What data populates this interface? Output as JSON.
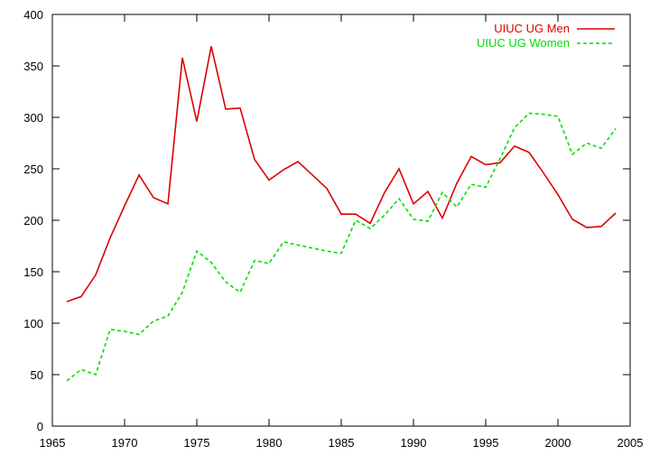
{
  "chart_data": {
    "type": "line",
    "title": "",
    "xlabel": "",
    "ylabel": "",
    "xlim": [
      1965,
      2005
    ],
    "ylim": [
      0,
      400
    ],
    "x_ticks": [
      1965,
      1970,
      1975,
      1980,
      1985,
      1990,
      1995,
      2000,
      2005
    ],
    "y_ticks": [
      0,
      50,
      100,
      150,
      200,
      250,
      300,
      350,
      400
    ],
    "grid": false,
    "legend_position": "top-right",
    "series": [
      {
        "name": "UIUC UG Men",
        "color": "#dd0000",
        "dash": "solid",
        "x": [
          1966,
          1967,
          1968,
          1969,
          1970,
          1971,
          1972,
          1973,
          1974,
          1975,
          1976,
          1977,
          1978,
          1979,
          1980,
          1981,
          1982,
          1983,
          1984,
          1985,
          1986,
          1987,
          1988,
          1989,
          1990,
          1991,
          1992,
          1993,
          1994,
          1995,
          1996,
          1997,
          1998,
          1999,
          2000,
          2001,
          2002,
          2003,
          2004
        ],
        "y": [
          121,
          126,
          147,
          183,
          214,
          244,
          222,
          216,
          358,
          296,
          369,
          308,
          309,
          259,
          239,
          249,
          257,
          244,
          231,
          206,
          206,
          197,
          227,
          250,
          216,
          228,
          202,
          236,
          262,
          254,
          256,
          272,
          266,
          246,
          225,
          201,
          193,
          194,
          207
        ]
      },
      {
        "name": "UIUC UG Women",
        "color": "#00dd00",
        "dash": "dashed",
        "x": [
          1966,
          1967,
          1968,
          1969,
          1970,
          1971,
          1972,
          1973,
          1974,
          1975,
          1976,
          1977,
          1978,
          1979,
          1980,
          1981,
          1982,
          1983,
          1984,
          1985,
          1986,
          1987,
          1988,
          1989,
          1990,
          1991,
          1992,
          1993,
          1994,
          1995,
          1996,
          1997,
          1998,
          1999,
          2000,
          2001,
          2002,
          2003,
          2004
        ],
        "y": [
          44,
          55,
          50,
          94,
          92,
          89,
          102,
          107,
          130,
          170,
          159,
          140,
          130,
          161,
          158,
          179,
          176,
          173,
          170,
          168,
          200,
          192,
          205,
          221,
          201,
          199,
          227,
          213,
          235,
          232,
          260,
          290,
          304,
          303,
          301,
          264,
          275,
          270,
          289
        ]
      }
    ]
  }
}
